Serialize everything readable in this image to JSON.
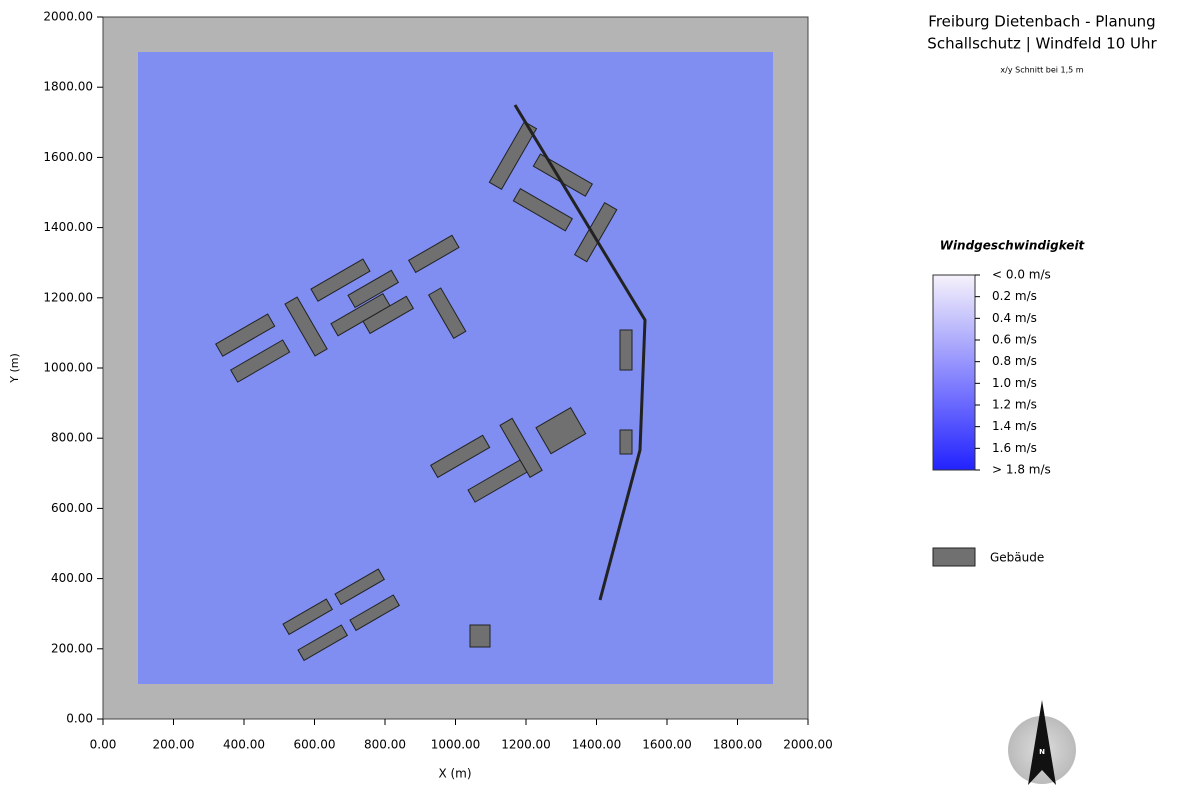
{
  "header": {
    "title": "Freiburg Dietenbach - Planung",
    "subtitle": "Schallschutz | Windfeld 10 Uhr",
    "note": "x/y Schnitt bei 1,5 m"
  },
  "plot": {
    "xlabel": "X (m)",
    "ylabel": "Y (m)",
    "xlim": [
      0,
      2000
    ],
    "ylim": [
      0,
      2000
    ],
    "xticks": [
      {
        "value": 0,
        "label": "0.00"
      },
      {
        "value": 200,
        "label": "200.00"
      },
      {
        "value": 400,
        "label": "400.00"
      },
      {
        "value": 600,
        "label": "600.00"
      },
      {
        "value": 800,
        "label": "800.00"
      },
      {
        "value": 1000,
        "label": "1000.00"
      },
      {
        "value": 1200,
        "label": "1200.00"
      },
      {
        "value": 1400,
        "label": "1400.00"
      },
      {
        "value": 1600,
        "label": "1600.00"
      },
      {
        "value": 1800,
        "label": "1800.00"
      },
      {
        "value": 2000,
        "label": "2000.00"
      }
    ],
    "yticks": [
      {
        "value": 0,
        "label": "0.00"
      },
      {
        "value": 200,
        "label": "200.00"
      },
      {
        "value": 400,
        "label": "400.00"
      },
      {
        "value": 600,
        "label": "600.00"
      },
      {
        "value": 800,
        "label": "800.00"
      },
      {
        "value": 1000,
        "label": "1000.00"
      },
      {
        "value": 1200,
        "label": "1200.00"
      },
      {
        "value": 1400,
        "label": "1400.00"
      },
      {
        "value": 1600,
        "label": "1600.00"
      },
      {
        "value": 1800,
        "label": "1800.00"
      },
      {
        "value": 2000,
        "label": "2000.00"
      }
    ]
  },
  "legend": {
    "title": "Windgeschwindigkeit",
    "entries": [
      "< 0.0 m/s",
      "0.2  m/s",
      "0.4  m/s",
      "0.6  m/s",
      "0.8  m/s",
      "1.0  m/s",
      "1.2  m/s",
      "1.4  m/s",
      "1.6  m/s",
      "> 1.8 m/s"
    ],
    "colors": [
      "#f6f2fb",
      "#2222ff"
    ],
    "building": "Gebäude"
  },
  "north": "N"
}
